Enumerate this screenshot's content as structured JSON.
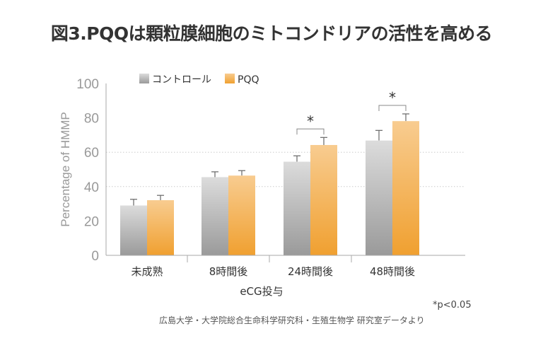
{
  "title": "図3.PQQは顆粒膜細胞のミトコンドリアの活性を高める",
  "chart_data": {
    "type": "bar",
    "title": "図3.PQQは顆粒膜細胞のミトコンドリアの活性を高める",
    "xlabel": "eCG投与",
    "ylabel": "Percentage of HMMP",
    "ylim": [
      0,
      100
    ],
    "yticks": [
      0,
      20,
      40,
      60,
      80,
      100
    ],
    "grid": "dotted lines at 40 and 60",
    "legend": "top",
    "categories": [
      "未成熟",
      "8時間後",
      "24時間後",
      "48時間後"
    ],
    "series": [
      {
        "name": "コントロール",
        "color": "#a8a8a8",
        "values": [
          29,
          45.5,
          54.5,
          66.8
        ],
        "error_upper": [
          32.6,
          48.6,
          57.9,
          72.7
        ]
      },
      {
        "name": "PQQ",
        "color": "#f0a030",
        "values": [
          32.1,
          46.4,
          64.2,
          78.1
        ],
        "error_upper": [
          34.9,
          49.3,
          68.6,
          82.3
        ]
      }
    ],
    "significance": [
      {
        "category": "24時間後",
        "mark": "*"
      },
      {
        "category": "48時間後",
        "mark": "*"
      }
    ],
    "annotation": "*p<0.05"
  },
  "source": "広島大学・大学院総合生命科学研究科・生殖生物学 研究室データより"
}
